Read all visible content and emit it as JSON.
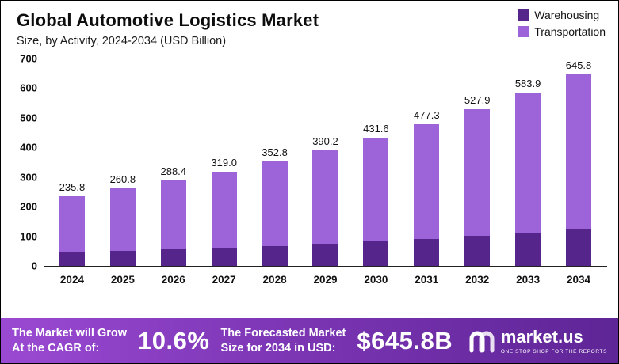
{
  "header": {
    "title": "Global Automotive Logistics Market",
    "subtitle": "Size, by Activity, 2024-2034 (USD Billion)"
  },
  "legend": {
    "items": [
      {
        "label": "Warehousing",
        "color": "#56258c"
      },
      {
        "label": "Transportation",
        "color": "#9d64d9"
      }
    ]
  },
  "chart_data": {
    "type": "bar",
    "stacked": true,
    "title": "Global Automotive Logistics Market",
    "subtitle": "Size, by Activity, 2024-2034 (USD Billion)",
    "categories": [
      "2024",
      "2025",
      "2026",
      "2027",
      "2028",
      "2029",
      "2030",
      "2031",
      "2032",
      "2033",
      "2034"
    ],
    "series": [
      {
        "name": "Warehousing",
        "color": "#56258c",
        "values": [
          45.0,
          50.0,
          55.0,
          61.0,
          68.0,
          75.0,
          84.0,
          92.0,
          101.0,
          111.0,
          123.0
        ]
      },
      {
        "name": "Transportation",
        "color": "#9d64d9",
        "values": [
          190.8,
          210.8,
          233.4,
          258.0,
          284.8,
          315.2,
          347.6,
          385.3,
          426.9,
          472.9,
          522.8
        ]
      }
    ],
    "totals": [
      235.8,
      260.8,
      288.4,
      319.0,
      352.8,
      390.2,
      431.6,
      477.3,
      527.9,
      583.9,
      645.8
    ],
    "ylim": [
      0,
      700
    ],
    "yticks": [
      0,
      100,
      200,
      300,
      400,
      500,
      600,
      700
    ],
    "grid": false,
    "legend_position": "top-right",
    "xlabel": "",
    "ylabel": ""
  },
  "banner": {
    "left_line1": "The Market will Grow",
    "left_line2": "At the CAGR of:",
    "cagr": "10.6%",
    "mid_line1": "The Forecasted Market",
    "mid_line2": "Size for 2034 in USD:",
    "forecast_value": "$645.8B",
    "brand_name": "market.us",
    "brand_tagline": "One Stop Shop For The Reports"
  }
}
